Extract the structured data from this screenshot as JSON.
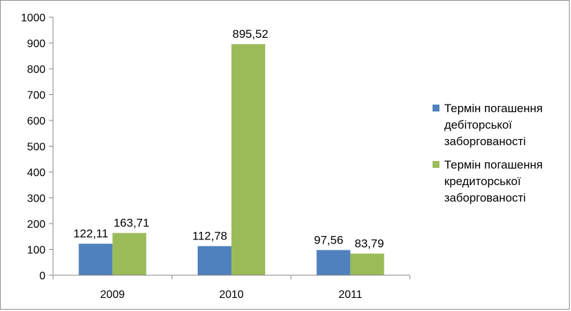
{
  "chart_data": {
    "type": "bar",
    "categories": [
      "2009",
      "2010",
      "2011"
    ],
    "series": [
      {
        "name": "Термін погашення дебіторської заборгованості",
        "name_lines": [
          "Термін погашення",
          "дебіторської",
          "заборгованості"
        ],
        "color": "#4f81bd",
        "values": [
          122.11,
          112.78,
          97.56
        ],
        "labels": [
          "122,11",
          "112,78",
          "97,56"
        ]
      },
      {
        "name": "Термін погашення кредиторської заборгованості",
        "name_lines": [
          "Термін погашення",
          "кредиторської",
          "заборгованості"
        ],
        "color": "#9bbb59",
        "values": [
          163.71,
          895.52,
          83.79
        ],
        "labels": [
          "163,71",
          "895,52",
          "83,79"
        ]
      }
    ],
    "y_ticks": [
      "0",
      "100",
      "200",
      "300",
      "400",
      "500",
      "600",
      "700",
      "800",
      "900",
      "1000"
    ],
    "ylim": [
      0,
      1000
    ],
    "grid": false,
    "legend": "right"
  }
}
